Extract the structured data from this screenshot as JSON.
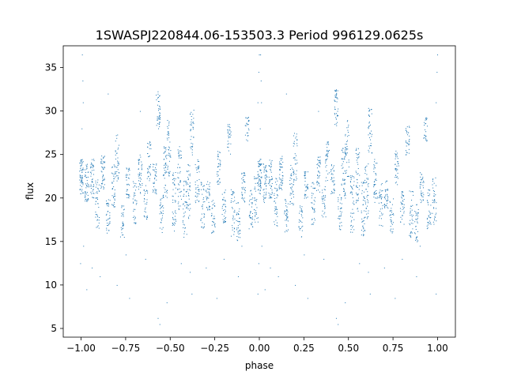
{
  "chart_data": {
    "type": "scatter",
    "title": "1SWASPJ220844.06-153503.3 Period 996129.0625s",
    "xlabel": "phase",
    "ylabel": "flux",
    "xlim": [
      -1.1,
      1.1
    ],
    "ylim": [
      4.0,
      37.5
    ],
    "x_ticks": [
      -1.0,
      -0.75,
      -0.5,
      -0.25,
      0.0,
      0.25,
      0.5,
      0.75,
      1.0
    ],
    "x_tick_labels": [
      "−1.00",
      "−0.75",
      "−0.50",
      "−0.25",
      "0.00",
      "0.25",
      "0.50",
      "0.75",
      "1.00"
    ],
    "y_ticks": [
      5,
      10,
      15,
      20,
      25,
      30,
      35
    ],
    "y_tick_labels": [
      "5",
      "10",
      "15",
      "20",
      "25",
      "30",
      "35"
    ],
    "grid": false,
    "legend": "none",
    "series": [
      {
        "color": "#1f77b4",
        "marker_size": 1,
        "clusters": [
          {
            "x": 0.0,
            "y_min": 20.5,
            "y_max": 24.5,
            "density": 60
          },
          {
            "x": 0.03,
            "y_min": 19.5,
            "y_max": 24.0,
            "density": 45
          },
          {
            "x": 0.06,
            "y_min": 20.0,
            "y_max": 24.5,
            "density": 45
          },
          {
            "x": 0.09,
            "y_min": 16.5,
            "y_max": 22.5,
            "density": 40
          },
          {
            "x": 0.12,
            "y_min": 21.0,
            "y_max": 25.0,
            "density": 45
          },
          {
            "x": 0.15,
            "y_min": 16.0,
            "y_max": 20.0,
            "density": 35
          },
          {
            "x": 0.18,
            "y_min": 19.0,
            "y_max": 24.0,
            "density": 40
          },
          {
            "x": 0.2,
            "y_min": 22.0,
            "y_max": 27.5,
            "density": 35
          },
          {
            "x": 0.23,
            "y_min": 15.5,
            "y_max": 19.5,
            "density": 30
          },
          {
            "x": 0.26,
            "y_min": 20.0,
            "y_max": 23.5,
            "density": 35
          },
          {
            "x": 0.3,
            "y_min": 17.0,
            "y_max": 22.0,
            "density": 35
          },
          {
            "x": 0.33,
            "y_min": 20.5,
            "y_max": 25.0,
            "density": 40
          },
          {
            "x": 0.36,
            "y_min": 17.5,
            "y_max": 21.5,
            "density": 30
          },
          {
            "x": 0.38,
            "y_min": 22.0,
            "y_max": 26.5,
            "density": 35
          },
          {
            "x": 0.41,
            "y_min": 20.5,
            "y_max": 24.0,
            "density": 35
          },
          {
            "x": 0.43,
            "y_min": 28.0,
            "y_max": 32.5,
            "density": 40
          },
          {
            "x": 0.45,
            "y_min": 16.0,
            "y_max": 20.5,
            "density": 35
          },
          {
            "x": 0.47,
            "y_min": 20.0,
            "y_max": 26.0,
            "density": 45
          },
          {
            "x": 0.49,
            "y_min": 22.5,
            "y_max": 29.0,
            "density": 40
          },
          {
            "x": 0.52,
            "y_min": 16.0,
            "y_max": 23.0,
            "density": 45
          },
          {
            "x": 0.55,
            "y_min": 18.5,
            "y_max": 26.0,
            "density": 45
          },
          {
            "x": 0.58,
            "y_min": 15.5,
            "y_max": 22.0,
            "density": 40
          },
          {
            "x": 0.6,
            "y_min": 17.5,
            "y_max": 24.0,
            "density": 40
          },
          {
            "x": 0.62,
            "y_min": 25.0,
            "y_max": 30.5,
            "density": 35
          },
          {
            "x": 0.65,
            "y_min": 19.5,
            "y_max": 24.5,
            "density": 40
          },
          {
            "x": 0.68,
            "y_min": 16.5,
            "y_max": 22.0,
            "density": 35
          },
          {
            "x": 0.71,
            "y_min": 18.5,
            "y_max": 22.0,
            "density": 35
          },
          {
            "x": 0.74,
            "y_min": 16.0,
            "y_max": 20.0,
            "density": 30
          },
          {
            "x": 0.77,
            "y_min": 21.5,
            "y_max": 25.5,
            "density": 35
          },
          {
            "x": 0.8,
            "y_min": 17.0,
            "y_max": 21.0,
            "density": 35
          },
          {
            "x": 0.83,
            "y_min": 25.0,
            "y_max": 28.5,
            "density": 30
          },
          {
            "x": 0.85,
            "y_min": 15.5,
            "y_max": 21.0,
            "density": 35
          },
          {
            "x": 0.88,
            "y_min": 15.0,
            "y_max": 19.5,
            "density": 35
          },
          {
            "x": 0.91,
            "y_min": 19.5,
            "y_max": 23.0,
            "density": 35
          },
          {
            "x": 0.93,
            "y_min": 26.5,
            "y_max": 29.5,
            "density": 25
          },
          {
            "x": 0.95,
            "y_min": 16.5,
            "y_max": 21.0,
            "density": 35
          },
          {
            "x": 0.98,
            "y_min": 17.0,
            "y_max": 22.5,
            "density": 35
          }
        ],
        "outliers": [
          {
            "x": 0.005,
            "y": 36.5
          },
          {
            "x": 0.008,
            "y": 33.5
          },
          {
            "x": 0.01,
            "y": 31.0
          },
          {
            "x": 0.003,
            "y": 28.0
          },
          {
            "x": 0.012,
            "y": 14.5
          },
          {
            "x": -0.005,
            "y": 12.5
          },
          {
            "x": 0.03,
            "y": 9.5
          },
          {
            "x": 0.06,
            "y": 12.0
          },
          {
            "x": 0.105,
            "y": 11.0
          },
          {
            "x": 0.2,
            "y": 10.0
          },
          {
            "x": 0.27,
            "y": 8.5
          },
          {
            "x": 0.43,
            "y": 6.2
          },
          {
            "x": 0.44,
            "y": 5.5
          },
          {
            "x": 0.48,
            "y": 8.0
          },
          {
            "x": 0.61,
            "y": 11.5
          },
          {
            "x": 0.62,
            "y": 9.0
          },
          {
            "x": 0.7,
            "y": 12.0
          },
          {
            "x": 0.76,
            "y": 8.5
          },
          {
            "x": 0.88,
            "y": 11.0
          },
          {
            "x": 0.99,
            "y": 9.0
          },
          {
            "x": 0.998,
            "y": 36.5
          },
          {
            "x": 0.995,
            "y": 34.5
          },
          {
            "x": 0.99,
            "y": 31.0
          },
          {
            "x": 0.15,
            "y": 32.0
          },
          {
            "x": 0.33,
            "y": 30.0
          },
          {
            "x": 0.8,
            "y": 13.0
          },
          {
            "x": 0.56,
            "y": 12.5
          },
          {
            "x": 0.36,
            "y": 13.0
          },
          {
            "x": 0.9,
            "y": 14.5
          },
          {
            "x": 0.25,
            "y": 13.5
          }
        ]
      }
    ]
  }
}
